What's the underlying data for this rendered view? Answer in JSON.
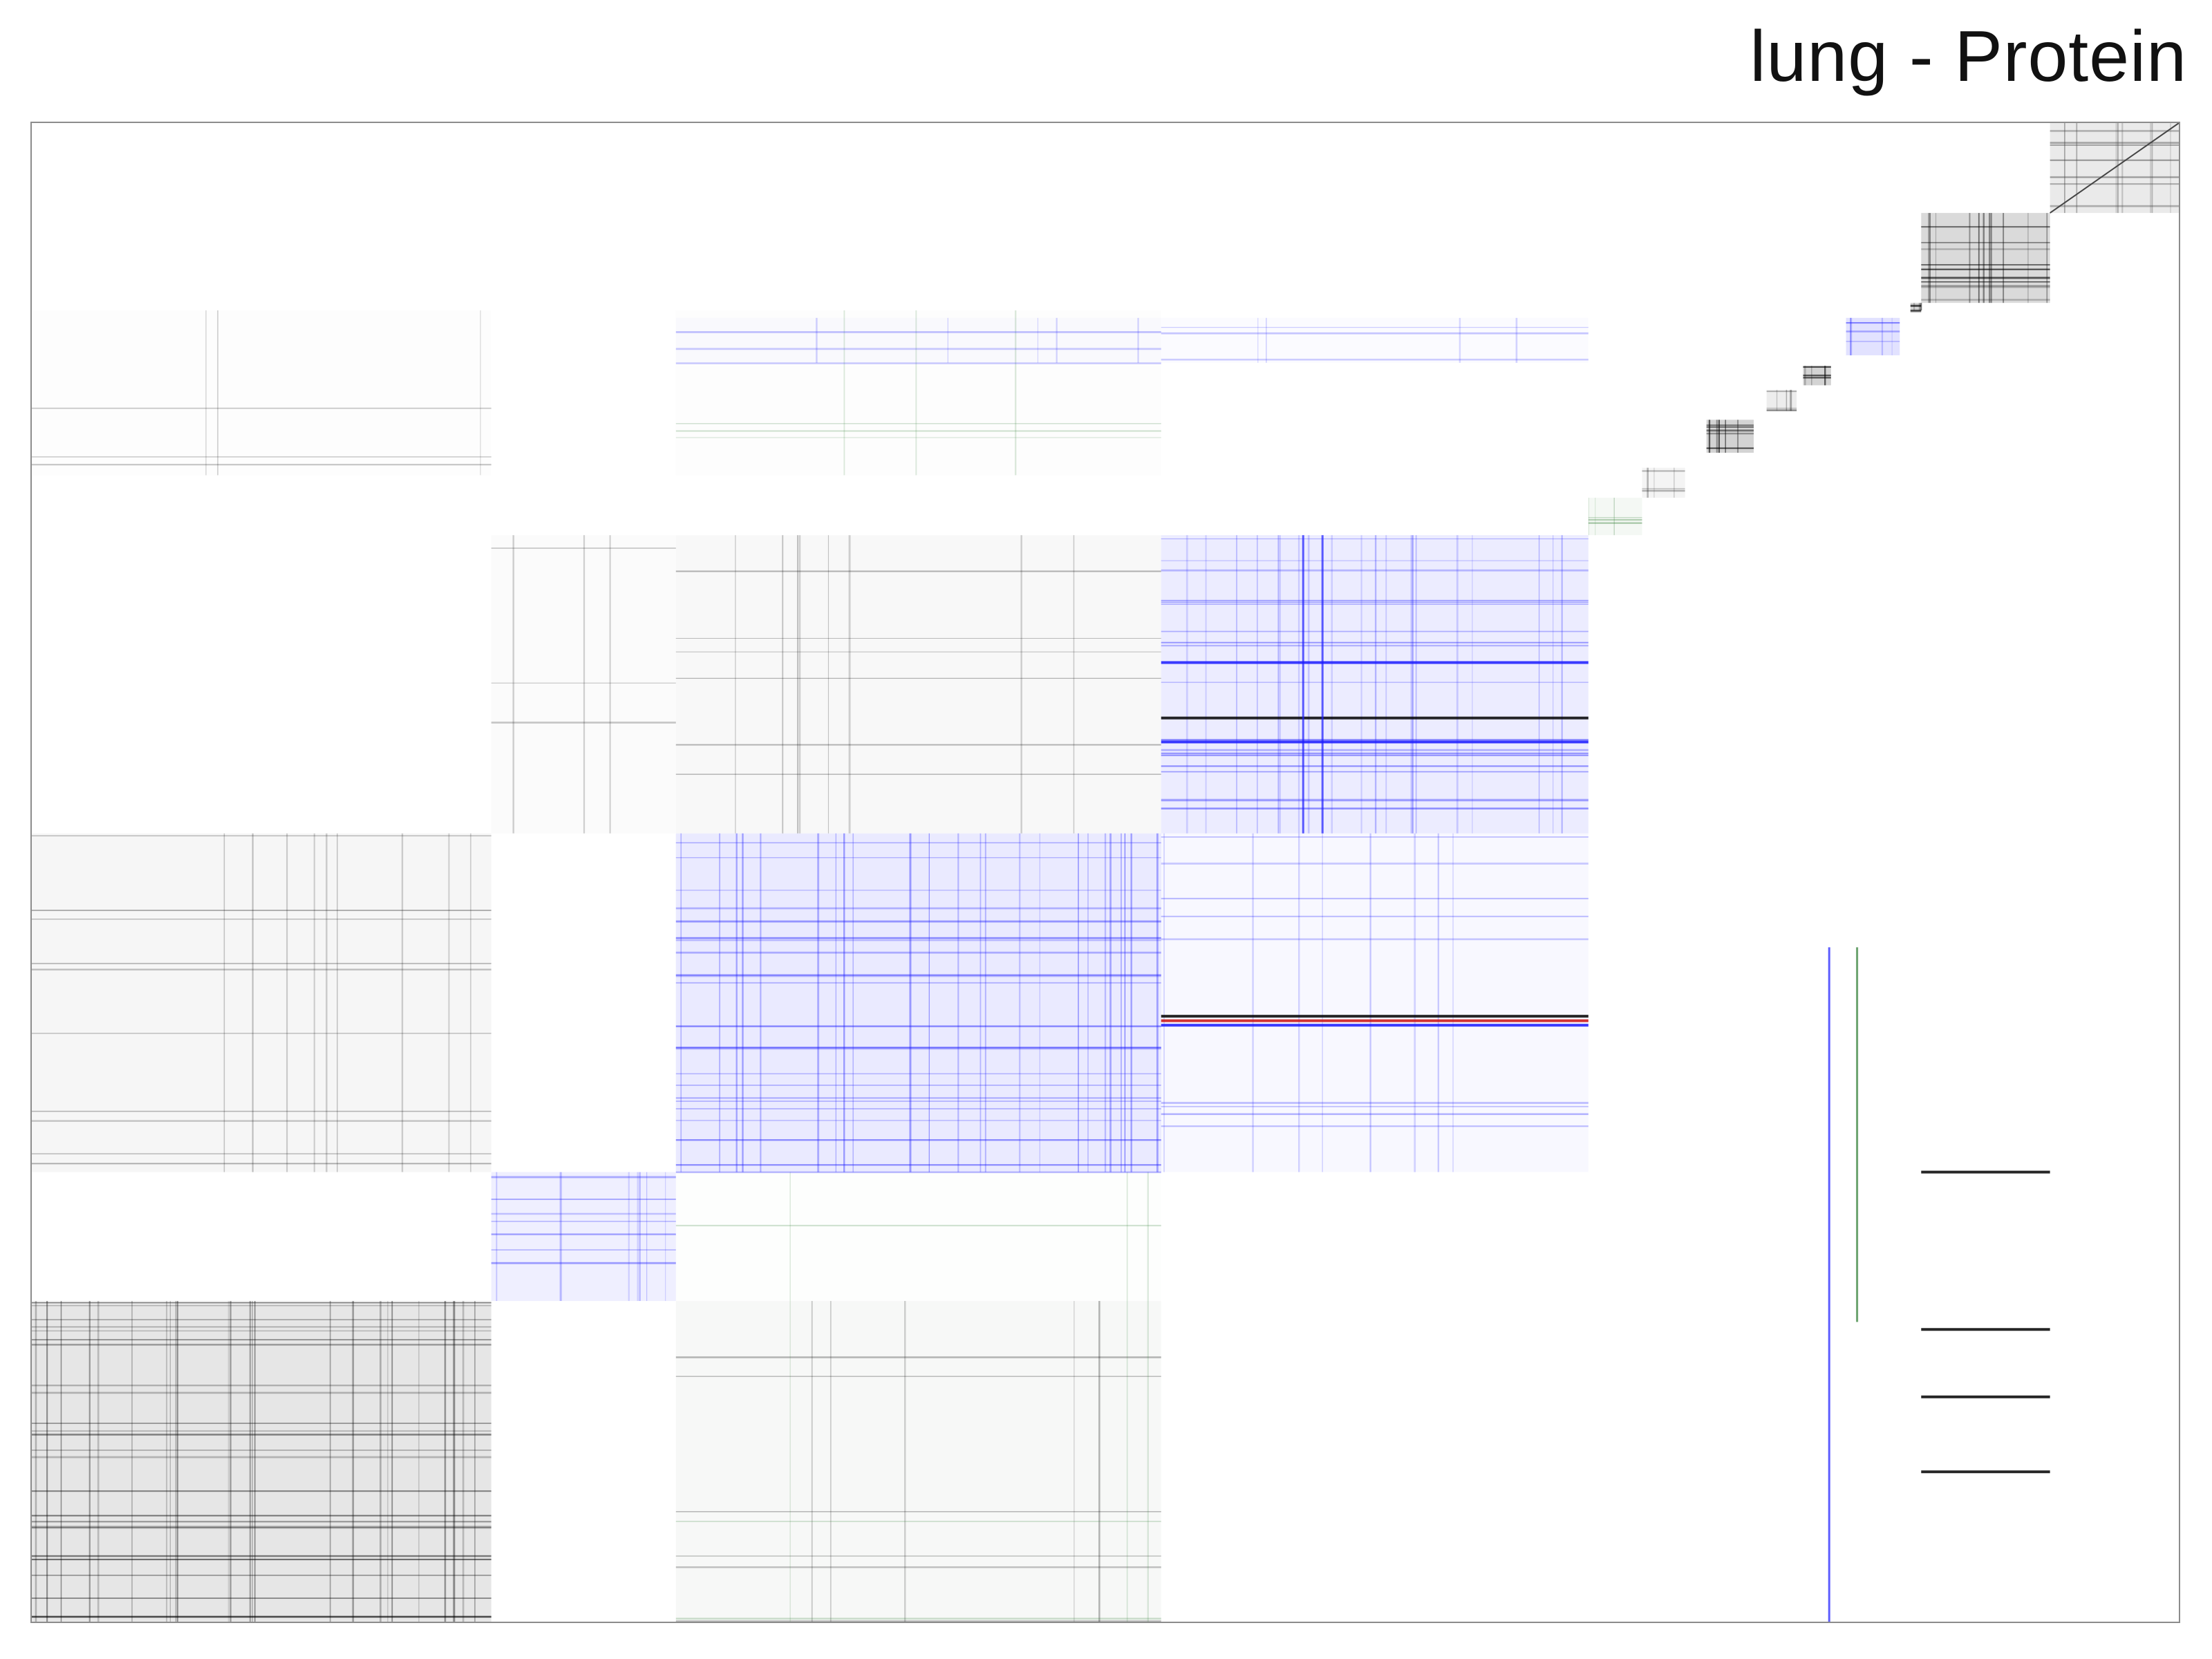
{
  "chart_data": {
    "type": "heatmap",
    "title": "lung - Protein",
    "xlabel": "",
    "ylabel": "",
    "grid": false,
    "axis_range": [
      0,
      1
    ],
    "colors": {
      "frame": "#8c8c8c",
      "dense": "#000000",
      "primary": "#1a1aff",
      "secondary": "#2e7d32",
      "accent": "#cc1111",
      "diagonal": "#444444"
    },
    "diagonal_blocks": [
      {
        "name": "block-1",
        "range": [
          0.0,
          0.214
        ],
        "density": 0.55,
        "color": "dense"
      },
      {
        "name": "block-2",
        "range": [
          0.214,
          0.3
        ],
        "density": 0.4,
        "color": "primary"
      },
      {
        "name": "block-3",
        "range": [
          0.3,
          0.526
        ],
        "density": 0.5,
        "color": "primary"
      },
      {
        "name": "block-4",
        "range": [
          0.526,
          0.725
        ],
        "density": 0.45,
        "color": "primary"
      },
      {
        "name": "block-5",
        "range": [
          0.725,
          0.75
        ],
        "density": 0.3,
        "color": "secondary"
      },
      {
        "name": "block-6",
        "range": [
          0.75,
          0.77
        ],
        "density": 0.25,
        "color": "dense"
      },
      {
        "name": "block-7",
        "range": [
          0.78,
          0.802
        ],
        "density": 0.95,
        "color": "dense"
      },
      {
        "name": "block-8",
        "range": [
          0.808,
          0.822
        ],
        "density": 0.4,
        "color": "dense"
      },
      {
        "name": "block-9",
        "range": [
          0.825,
          0.838
        ],
        "density": 0.95,
        "color": "dense"
      },
      {
        "name": "block-10",
        "range": [
          0.845,
          0.87
        ],
        "density": 0.7,
        "color": "primary"
      },
      {
        "name": "block-11",
        "range": [
          0.875,
          0.88
        ],
        "density": 0.95,
        "color": "dense"
      },
      {
        "name": "block-12",
        "range": [
          0.88,
          0.94
        ],
        "density": 0.8,
        "color": "dense"
      },
      {
        "name": "block-13",
        "range": [
          0.94,
          1.0
        ],
        "density": 0.6,
        "color": "diagonal"
      }
    ],
    "off_diagonal_blocks": [
      {
        "name": "off-1",
        "x": [
          0.3,
          0.526
        ],
        "y": [
          0.0,
          0.214
        ],
        "density": 0.12,
        "color": "dense"
      },
      {
        "name": "off-2",
        "x": [
          0.0,
          0.214
        ],
        "y": [
          0.3,
          0.526
        ],
        "density": 0.2,
        "color": "dense"
      },
      {
        "name": "off-3",
        "x": [
          0.526,
          0.725
        ],
        "y": [
          0.3,
          0.526
        ],
        "density": 0.18,
        "color": "primary"
      },
      {
        "name": "off-4",
        "x": [
          0.3,
          0.526
        ],
        "y": [
          0.526,
          0.725
        ],
        "density": 0.15,
        "color": "dense"
      },
      {
        "name": "off-5",
        "x": [
          0.3,
          0.526
        ],
        "y": [
          0.765,
          0.875
        ],
        "density": 0.06,
        "color": "secondary"
      },
      {
        "name": "off-6",
        "x": [
          0.0,
          0.214
        ],
        "y": [
          0.765,
          0.875
        ],
        "density": 0.05,
        "color": "dense"
      },
      {
        "name": "off-7",
        "x": [
          0.3,
          0.526
        ],
        "y": [
          0.84,
          0.87
        ],
        "density": 0.1,
        "color": "primary"
      },
      {
        "name": "off-8",
        "x": [
          0.526,
          0.725
        ],
        "y": [
          0.84,
          0.87
        ],
        "density": 0.08,
        "color": "primary"
      },
      {
        "name": "off-9",
        "x": [
          0.214,
          0.3
        ],
        "y": [
          0.526,
          0.725
        ],
        "density": 0.08,
        "color": "dense"
      },
      {
        "name": "off-10",
        "x": [
          0.3,
          0.526
        ],
        "y": [
          0.0,
          0.3
        ],
        "density": 0.05,
        "color": "secondary"
      }
    ],
    "highlight_rows": [
      {
        "name": "row-1",
        "y": 0.398,
        "x": [
          0.526,
          0.725
        ],
        "color": "primary"
      },
      {
        "name": "row-2",
        "y": 0.401,
        "x": [
          0.526,
          0.725
        ],
        "color": "accent"
      },
      {
        "name": "row-3",
        "y": 0.404,
        "x": [
          0.526,
          0.725
        ],
        "color": "dense"
      },
      {
        "name": "row-4",
        "y": 0.587,
        "x": [
          0.526,
          0.725
        ],
        "color": "primary"
      },
      {
        "name": "row-5",
        "y": 0.603,
        "x": [
          0.526,
          0.725
        ],
        "color": "dense"
      },
      {
        "name": "row-6",
        "y": 0.64,
        "x": [
          0.526,
          0.725
        ],
        "color": "primary"
      },
      {
        "name": "row-7",
        "y": 0.3,
        "x": [
          0.88,
          0.94
        ],
        "color": "dense"
      },
      {
        "name": "row-8",
        "y": 0.195,
        "x": [
          0.88,
          0.94
        ],
        "color": "dense"
      },
      {
        "name": "row-9",
        "y": 0.15,
        "x": [
          0.88,
          0.94
        ],
        "color": "dense"
      },
      {
        "name": "row-10",
        "y": 0.1,
        "x": [
          0.88,
          0.94
        ],
        "color": "dense"
      }
    ],
    "highlight_cols": [
      {
        "name": "col-1",
        "x": 0.592,
        "y": [
          0.526,
          0.725
        ],
        "color": "primary"
      },
      {
        "name": "col-2",
        "x": 0.601,
        "y": [
          0.526,
          0.725
        ],
        "color": "primary"
      },
      {
        "name": "col-3",
        "x": 0.837,
        "y": [
          0.0,
          0.45
        ],
        "color": "primary"
      },
      {
        "name": "col-4",
        "x": 0.85,
        "y": [
          0.2,
          0.45
        ],
        "color": "secondary"
      }
    ]
  }
}
